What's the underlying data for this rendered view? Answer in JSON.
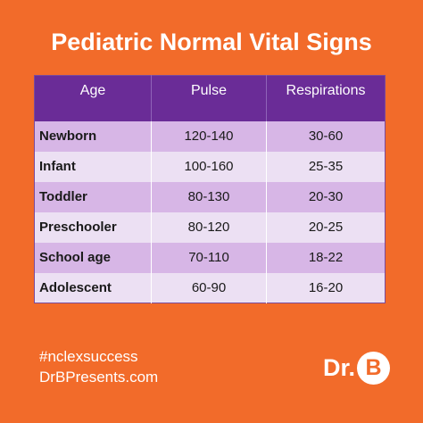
{
  "title": "Pediatric Normal Vital Signs",
  "table": {
    "headers": [
      "Age",
      "Pulse",
      "Respirations"
    ],
    "rows": [
      {
        "age": "Newborn",
        "pulse": "120-140",
        "respirations": "30-60"
      },
      {
        "age": "Infant",
        "pulse": "100-160",
        "respirations": "25-35"
      },
      {
        "age": "Toddler",
        "pulse": "80-130",
        "respirations": "20-30"
      },
      {
        "age": "Preschooler",
        "pulse": "80-120",
        "respirations": "20-25"
      },
      {
        "age": "School age",
        "pulse": "70-110",
        "respirations": "18-22"
      },
      {
        "age": "Adolescent",
        "pulse": "60-90",
        "respirations": "16-20"
      }
    ]
  },
  "footer": {
    "hashtag": "#nclexsuccess",
    "website": "DrBPresents.com",
    "logo_text": "Dr.",
    "logo_letter": "B"
  },
  "colors": {
    "background": "#f26b2a",
    "header": "#6a2c97",
    "row_dark": "#d7b6e6",
    "row_light": "#ece0f3"
  }
}
